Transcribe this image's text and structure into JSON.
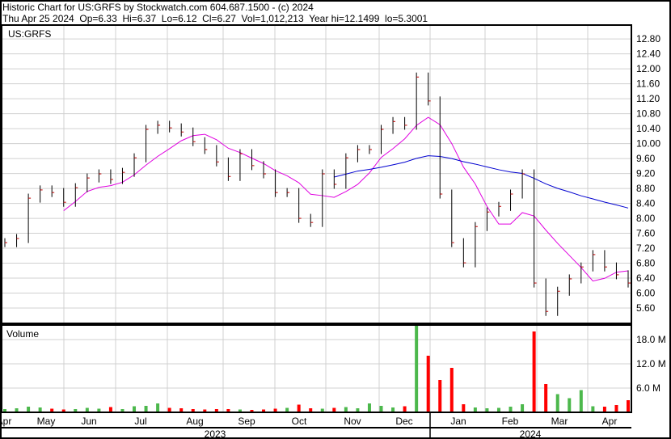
{
  "header": {
    "title": "Historic Chart for US:GRFS by Stockwatch.com 604.687.1500 - (c) 2024",
    "quote": "Thu Apr 25 2024  Op=6.33  Hi=6.37  Lo=6.12  Cl=6.27  Vol=1,012,213  Year hi=12.1499  lo=5.3001"
  },
  "chart_data": {
    "type": "bar",
    "symbol": "US:GRFS",
    "volume_label": "Volume",
    "price_ticks": [
      "12.80",
      "12.40",
      "12.00",
      "11.60",
      "11.20",
      "10.80",
      "10.40",
      "10.00",
      "9.60",
      "9.20",
      "8.80",
      "8.40",
      "8.00",
      "7.60",
      "7.20",
      "6.80",
      "6.40",
      "6.00",
      "5.60"
    ],
    "volume_ticks": [
      "18.0 M",
      "12.0 M",
      "6.0 M"
    ],
    "month_labels": [
      "Apr",
      "May",
      "Jun",
      "Jul",
      "Aug",
      "Sep",
      "Oct",
      "Nov",
      "Dec",
      "Jan",
      "Feb",
      "Mar",
      "Apr"
    ],
    "year_labels": [
      "2023",
      "2024"
    ],
    "price_range": [
      5.19,
      13.17
    ],
    "volume_range_millions": [
      0,
      21.6
    ],
    "weekly_close": [
      7.35,
      7.46,
      8.54,
      8.76,
      8.69,
      8.43,
      8.82,
      9.08,
      9.19,
      9.04,
      9.23,
      9.62,
      10.38,
      10.49,
      10.42,
      10.31,
      10.05,
      9.84,
      9.51,
      9.12,
      9.73,
      9.41,
      9.19,
      8.69,
      8.69,
      8.0,
      7.89,
      9.19,
      8.91,
      9.62,
      9.84,
      9.84,
      10.38,
      10.59,
      10.49,
      11.78,
      11.14,
      8.65,
      7.35,
      6.81,
      7.78,
      8.17,
      8.32,
      8.65,
      9.19,
      6.27,
      5.51,
      6.05,
      6.38,
      6.7,
      7.03,
      6.7,
      6.49,
      6.27
    ],
    "weekly_volume_millions": [
      0.8,
      1.0,
      1.4,
      1.2,
      0.9,
      0.7,
      0.8,
      1.1,
      0.9,
      1.3,
      0.8,
      1.5,
      1.6,
      2.2,
      1.1,
      1.0,
      0.8,
      0.7,
      0.8,
      0.8,
      0.7,
      0.6,
      0.7,
      0.9,
      1.1,
      1.9,
      1.0,
      0.9,
      1.1,
      1.3,
      1.0,
      2.2,
      1.6,
      1.2,
      1.5,
      22.0,
      14.0,
      8.0,
      11.0,
      2.0,
      1.2,
      1.0,
      1.1,
      1.4,
      2.0,
      20.0,
      7.0,
      4.5,
      3.5,
      5.5,
      1.5,
      1.4,
      1.8,
      3.0
    ],
    "ma_short_color": "#e000e0",
    "ma_long_color": "#0000d0",
    "up_volume_color": "#4cb84c",
    "down_volume_color": "#ff0000",
    "grid": true
  }
}
